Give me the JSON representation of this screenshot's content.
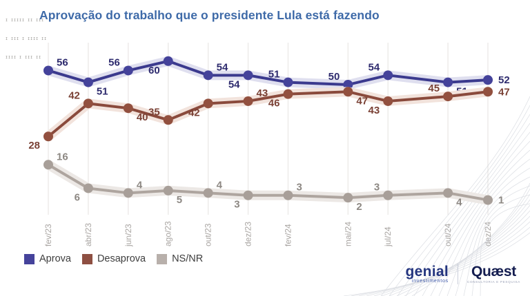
{
  "header": {
    "title": "Aprovação do trabalho que o presidente Lula está fazendo",
    "fineprint_lines": [
      "I IIIII II III",
      "I III I IIII II",
      "IIII I III II"
    ]
  },
  "chart_data": {
    "type": "line",
    "title": "Aprovação do trabalho que o presidente Lula está fazendo",
    "categories": [
      "fev/23",
      "abr/23",
      "jun/23",
      "ago/23",
      "out/23",
      "dez/23",
      "fev/24",
      "mai/24",
      "jul/24",
      "out/24",
      "dez/24"
    ],
    "month_offsets": [
      0,
      2,
      4,
      6,
      8,
      10,
      12,
      15,
      17,
      20,
      22
    ],
    "series": [
      {
        "name": "Aprova",
        "color": "#3b3a8e",
        "dot_color": "#44429a",
        "halo_color": "#dfdfef",
        "label_color": "#2e2b6e",
        "values": [
          56,
          51,
          56,
          60,
          54,
          54,
          51,
          50,
          54,
          51,
          52
        ],
        "label_pos": [
          "above-right",
          "below-right",
          "above-left",
          "below-left",
          "above-right",
          "below-left",
          "above-left",
          "above-left",
          "above-left",
          "below-right",
          "right"
        ]
      },
      {
        "name": "Desaprova",
        "color": "#8a4a3c",
        "dot_color": "#92503f",
        "halo_color": "#f2e3dc",
        "label_color": "#7a4135",
        "values": [
          28,
          42,
          40,
          35,
          42,
          43,
          46,
          47,
          43,
          45,
          47
        ],
        "label_pos": [
          "below-left",
          "above-left",
          "below-right",
          "above-left",
          "below-left",
          "above-right",
          "below-left",
          "below-right",
          "below-left",
          "above-left",
          "right"
        ]
      },
      {
        "name": "NS/NR",
        "color": "#aea59f",
        "dot_color": "#a89f99",
        "halo_color": "#ece8e5",
        "label_color": "#8d8883",
        "values": [
          16,
          6,
          4,
          5,
          4,
          3,
          3,
          2,
          3,
          4,
          1
        ],
        "label_pos": [
          "above-right",
          "below-left",
          "above-right",
          "below-right",
          "above-right",
          "below-left",
          "above-right",
          "below-right",
          "above-left",
          "below-right",
          "right"
        ]
      }
    ],
    "ylim": [
      0,
      68
    ],
    "grid": "vertical-only",
    "xtick_color": "#a9a5a2",
    "gridline_color": "#eceae8",
    "legend_position": "bottom-left"
  },
  "legend": {
    "items": [
      {
        "label": "Aprova",
        "color": "#45439b"
      },
      {
        "label": "Desaprova",
        "color": "#8e4f42"
      },
      {
        "label": "NS/NR",
        "color": "#b8b0ab"
      }
    ]
  },
  "footer": {
    "brand1": {
      "name": "genial",
      "sub": "investimentos"
    },
    "brand2": {
      "name": "Quæst",
      "sub": "CONSULTORIA E PESQUISA"
    }
  }
}
